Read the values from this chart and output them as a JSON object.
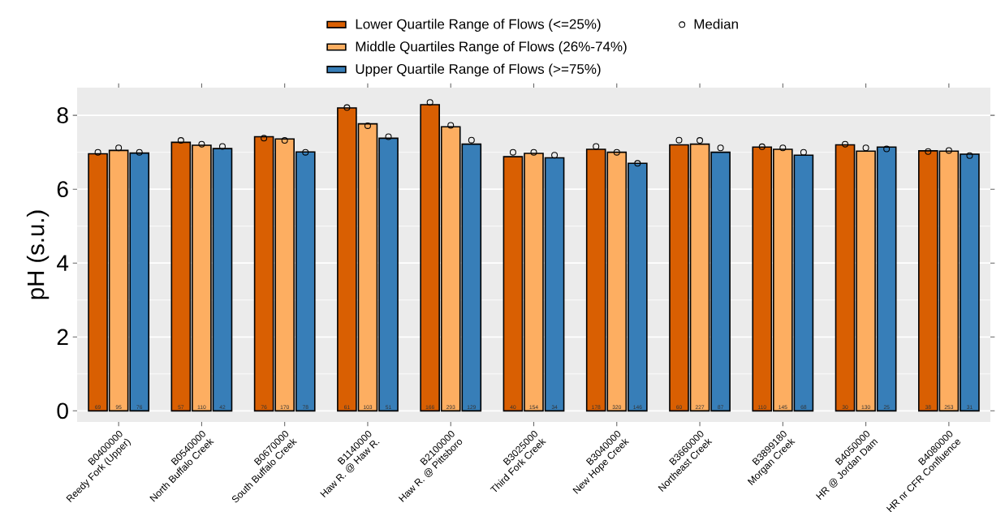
{
  "chart_data": {
    "type": "bar",
    "ylabel": "pH (s.u.)",
    "categories": [
      "B0400000\nReedy Fork (Upper)",
      "B0540000\nNorth Buffalo Creek",
      "B0670000\nSouth Buffalo Creek",
      "B1140000\nHaw R. @ Haw R.",
      "B2100000\nHaw R. @ Pittsboro",
      "B3025000\nThird Fork Creek",
      "B3040000\nNew Hope Creek",
      "B3660000\nNortheast Creek",
      "B3899180\nMorgan Creek",
      "B4050000\nHR @ Jordan Dam",
      "B4080000\nHR nr CFR Confluence"
    ],
    "series": [
      {
        "name": "Lower Quartile Range of Flows (<=25%)",
        "color": "#d95f02",
        "values": [
          6.96,
          7.27,
          7.42,
          8.2,
          8.29,
          6.88,
          7.08,
          7.2,
          7.14,
          7.2,
          7.04
        ]
      },
      {
        "name": "Middle Quartiles Range of Flows (26%-74%)",
        "color": "#fdae61",
        "values": [
          7.05,
          7.19,
          7.36,
          7.77,
          7.69,
          6.97,
          7.0,
          7.22,
          7.08,
          7.03,
          7.03
        ]
      },
      {
        "name": "Upper Quartile Range of Flows (>=75%)",
        "color": "#377eb8",
        "values": [
          6.98,
          7.1,
          7.01,
          7.38,
          7.22,
          6.85,
          6.7,
          7.0,
          6.92,
          7.14,
          6.95
        ]
      },
      {
        "name": "Median",
        "type": "scatter",
        "color": "#000000",
        "values": [
          7.0,
          7.32,
          7.38,
          8.21,
          8.35,
          7.0,
          7.16,
          7.33,
          7.15,
          7.22,
          7.02
        ]
      },
      {
        "type": "scatter",
        "color": "#000000",
        "values": [
          7.12,
          7.22,
          7.32,
          7.72,
          7.73,
          7.0,
          7.0,
          7.32,
          7.12,
          7.12,
          7.05
        ]
      },
      {
        "type": "scatter",
        "color": "#000000",
        "values": [
          7.0,
          7.16,
          7.0,
          7.42,
          7.33,
          6.92,
          6.7,
          7.12,
          7.0,
          7.09,
          6.91
        ]
      }
    ],
    "marker": "circle",
    "ylim": [
      -0.3,
      8.75
    ],
    "yticks": [
      0,
      2,
      4,
      6,
      8
    ],
    "grid": "y",
    "legend": "top",
    "annotations": [
      "69",
      "95",
      "76",
      "57",
      "110",
      "42",
      "76",
      "170",
      "78",
      "61",
      "103",
      "51",
      "166",
      "293",
      "129",
      "40",
      "154",
      "34",
      "178",
      "320",
      "146",
      "60",
      "227",
      "87",
      "110",
      "145",
      "68",
      "30",
      "130",
      "25",
      "38",
      "253",
      "31"
    ]
  }
}
